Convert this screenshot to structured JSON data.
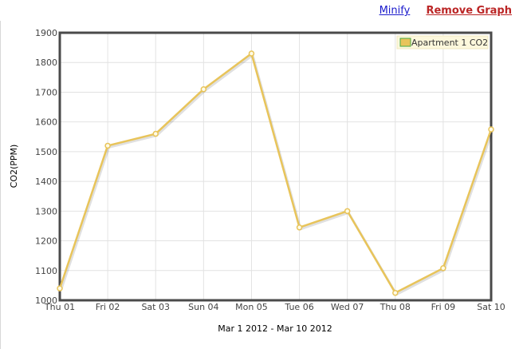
{
  "links": {
    "minify": "Minify",
    "remove_graph": "Remove Graph"
  },
  "chart_data": {
    "type": "line",
    "title": "",
    "xlabel": "Mar 1 2012 - Mar 10 2012",
    "ylabel": "CO2(PPM)",
    "categories": [
      "Thu 01",
      "Fri 02",
      "Sat 03",
      "Sun 04",
      "Mon 05",
      "Tue 06",
      "Wed 07",
      "Thu 08",
      "Fri 09",
      "Sat 10"
    ],
    "ylim": [
      1000,
      1900
    ],
    "yticks": [
      1000,
      1100,
      1200,
      1300,
      1400,
      1500,
      1600,
      1700,
      1800,
      1900
    ],
    "series": [
      {
        "name": "Apartment 1 CO2",
        "color": "#e8c45a",
        "values": [
          1040,
          1520,
          1560,
          1710,
          1830,
          1245,
          1300,
          1025,
          1108,
          1575
        ]
      }
    ],
    "grid": true,
    "legend_position": "top-right"
  }
}
